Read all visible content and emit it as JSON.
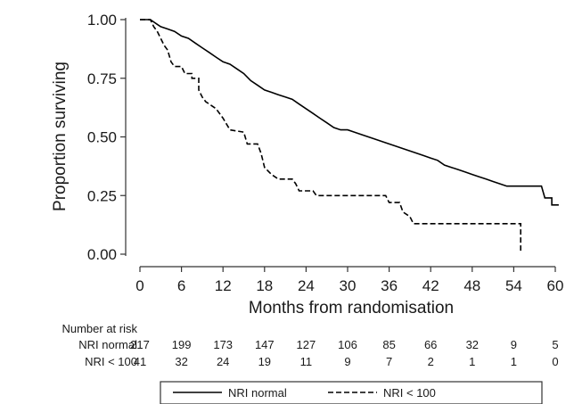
{
  "chart_data": {
    "type": "line",
    "title": "",
    "xlabel": "Months from randomisation",
    "ylabel": "Proportion surviving",
    "xlim": [
      0,
      60
    ],
    "ylim": [
      0,
      1
    ],
    "x_ticks": [
      0,
      6,
      12,
      18,
      24,
      30,
      36,
      42,
      48,
      54,
      60
    ],
    "x_tick_labels": [
      "0",
      "6",
      "12",
      "18",
      "24",
      "30",
      "36",
      "42",
      "48",
      "54",
      "60"
    ],
    "y_ticks": [
      0,
      0.25,
      0.5,
      0.75,
      1
    ],
    "y_tick_labels": [
      "0.00",
      "0.25",
      "0.50",
      "0.75",
      "1.00"
    ],
    "grid": false,
    "legend_position": "bottom",
    "series": [
      {
        "name": "NRI normal",
        "style": "solid",
        "points": [
          [
            0,
            1.0
          ],
          [
            1.5,
            1.0
          ],
          [
            2,
            0.99
          ],
          [
            2.5,
            0.98
          ],
          [
            3,
            0.97
          ],
          [
            4,
            0.96
          ],
          [
            5,
            0.95
          ],
          [
            6,
            0.93
          ],
          [
            7,
            0.92
          ],
          [
            8,
            0.9
          ],
          [
            9,
            0.88
          ],
          [
            10,
            0.86
          ],
          [
            11,
            0.84
          ],
          [
            12,
            0.82
          ],
          [
            13,
            0.81
          ],
          [
            14,
            0.79
          ],
          [
            15,
            0.77
          ],
          [
            16,
            0.74
          ],
          [
            17,
            0.72
          ],
          [
            18,
            0.7
          ],
          [
            19,
            0.69
          ],
          [
            20,
            0.68
          ],
          [
            21,
            0.67
          ],
          [
            22,
            0.66
          ],
          [
            23,
            0.64
          ],
          [
            24,
            0.62
          ],
          [
            25,
            0.6
          ],
          [
            26,
            0.58
          ],
          [
            27,
            0.56
          ],
          [
            28,
            0.54
          ],
          [
            29,
            0.53
          ],
          [
            30,
            0.53
          ],
          [
            31,
            0.52
          ],
          [
            32,
            0.51
          ],
          [
            33,
            0.5
          ],
          [
            34,
            0.49
          ],
          [
            35,
            0.48
          ],
          [
            36,
            0.47
          ],
          [
            37,
            0.46
          ],
          [
            38,
            0.45
          ],
          [
            39,
            0.44
          ],
          [
            40,
            0.43
          ],
          [
            41,
            0.42
          ],
          [
            42,
            0.41
          ],
          [
            43,
            0.4
          ],
          [
            44,
            0.38
          ],
          [
            45,
            0.37
          ],
          [
            46,
            0.36
          ],
          [
            47,
            0.35
          ],
          [
            48,
            0.34
          ],
          [
            49,
            0.33
          ],
          [
            50,
            0.32
          ],
          [
            51,
            0.31
          ],
          [
            52,
            0.3
          ],
          [
            53,
            0.29
          ],
          [
            54,
            0.29
          ],
          [
            58,
            0.29
          ],
          [
            58.5,
            0.24
          ],
          [
            59.5,
            0.24
          ],
          [
            59.5,
            0.21
          ],
          [
            60.5,
            0.21
          ]
        ]
      },
      {
        "name": "NRI < 100",
        "style": "dashed",
        "points": [
          [
            0,
            1.0
          ],
          [
            1.5,
            1.0
          ],
          [
            2,
            0.97
          ],
          [
            2.5,
            0.95
          ],
          [
            3,
            0.92
          ],
          [
            3.5,
            0.89
          ],
          [
            4,
            0.87
          ],
          [
            4.5,
            0.82
          ],
          [
            5,
            0.8
          ],
          [
            6,
            0.8
          ],
          [
            6.5,
            0.77
          ],
          [
            7.5,
            0.77
          ],
          [
            7.5,
            0.75
          ],
          [
            8.5,
            0.75
          ],
          [
            8.5,
            0.7
          ],
          [
            9,
            0.67
          ],
          [
            9.5,
            0.65
          ],
          [
            11,
            0.62
          ],
          [
            12,
            0.58
          ],
          [
            13,
            0.53
          ],
          [
            15,
            0.52
          ],
          [
            15.5,
            0.47
          ],
          [
            17,
            0.47
          ],
          [
            17.5,
            0.43
          ],
          [
            18,
            0.37
          ],
          [
            19,
            0.34
          ],
          [
            20,
            0.32
          ],
          [
            22,
            0.32
          ],
          [
            22.5,
            0.3
          ],
          [
            23,
            0.27
          ],
          [
            25,
            0.27
          ],
          [
            25.5,
            0.25
          ],
          [
            30,
            0.25
          ],
          [
            35.5,
            0.25
          ],
          [
            36,
            0.22
          ],
          [
            37.5,
            0.22
          ],
          [
            38,
            0.18
          ],
          [
            39,
            0.16
          ],
          [
            39.5,
            0.13
          ],
          [
            55,
            0.13
          ],
          [
            55,
            0.01
          ]
        ]
      }
    ],
    "risk_table": {
      "title": "Number at risk",
      "times": [
        0,
        6,
        12,
        18,
        24,
        30,
        36,
        42,
        48,
        54,
        60
      ],
      "rows": [
        {
          "label": "NRI normal",
          "counts": [
            "217",
            "199",
            "173",
            "147",
            "127",
            "106",
            "85",
            "66",
            "32",
            "9",
            "5"
          ]
        },
        {
          "label": "NRI < 100",
          "counts": [
            "41",
            "32",
            "24",
            "19",
            "11",
            "9",
            "7",
            "2",
            "1",
            "1",
            "0"
          ]
        }
      ]
    }
  },
  "colors": {
    "line": "#000000",
    "axis": "#333333",
    "text": "#1a1a1a"
  }
}
